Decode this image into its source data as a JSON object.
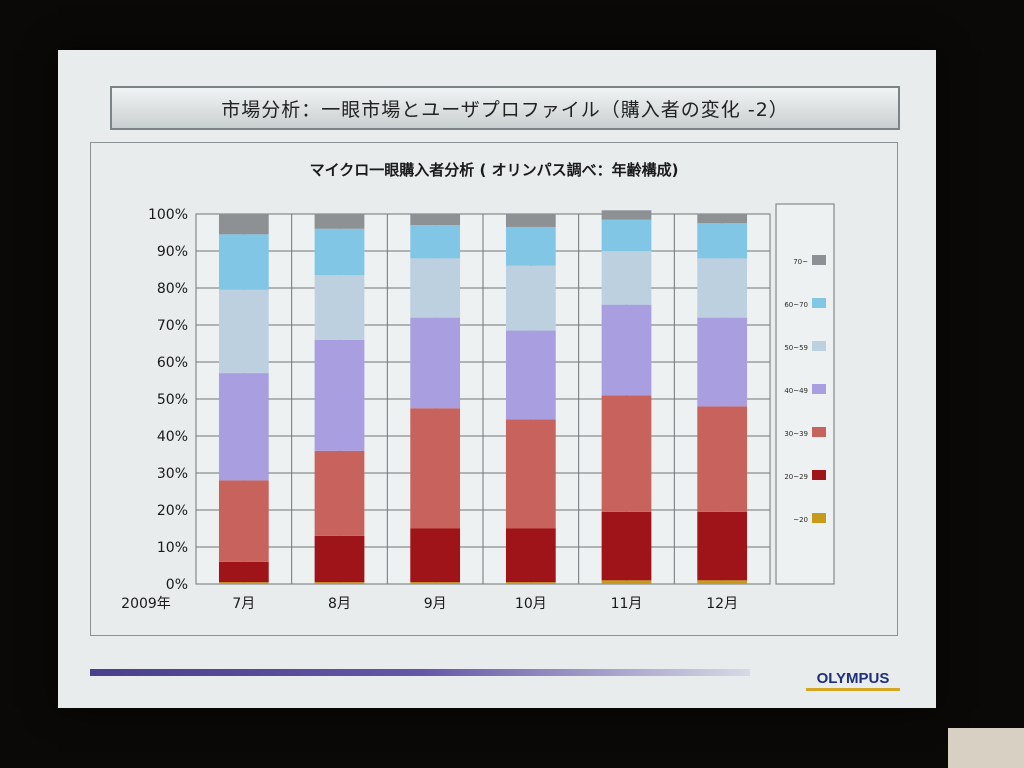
{
  "slide": {
    "title": "市場分析：一眼市場とユーザプロファイル（購入者の変化 -2）",
    "logo": "OLYMPUS"
  },
  "chart_data": {
    "type": "bar",
    "stacked": true,
    "title": "マイクロ一眼購入者分析 ( オリンパス調べ：年齢構成)",
    "year_label": "2009年",
    "categories": [
      "7月",
      "8月",
      "9月",
      "10月",
      "11月",
      "12月"
    ],
    "y_ticks": [
      "0%",
      "10%",
      "20%",
      "30%",
      "40%",
      "50%",
      "60%",
      "70%",
      "80%",
      "90%",
      "100%"
    ],
    "ylim": [
      0,
      100
    ],
    "grid": true,
    "legend_position": "right",
    "series": [
      {
        "name": "~20",
        "color": "#c89a1a",
        "values": [
          0.5,
          0.5,
          0.5,
          0.5,
          1.0,
          1.0
        ]
      },
      {
        "name": "20~29",
        "color": "#9e1418",
        "values": [
          5.5,
          12.5,
          14.5,
          14.5,
          18.5,
          18.5
        ]
      },
      {
        "name": "30~39",
        "color": "#c8625c",
        "values": [
          22.0,
          23.0,
          32.5,
          29.5,
          31.5,
          28.5
        ]
      },
      {
        "name": "40~49",
        "color": "#a89ee0",
        "values": [
          29.0,
          30.0,
          24.5,
          24.0,
          24.5,
          24.0
        ]
      },
      {
        "name": "50~59",
        "color": "#bcd0df",
        "values": [
          22.5,
          17.5,
          16.0,
          17.5,
          14.5,
          16.0
        ]
      },
      {
        "name": "60~70",
        "color": "#82c6e6",
        "values": [
          15.0,
          12.5,
          9.0,
          10.5,
          8.5,
          9.5
        ]
      },
      {
        "name": "70~",
        "color": "#8d9194",
        "values": [
          5.5,
          4.0,
          3.0,
          3.5,
          2.5,
          2.5
        ]
      }
    ]
  }
}
